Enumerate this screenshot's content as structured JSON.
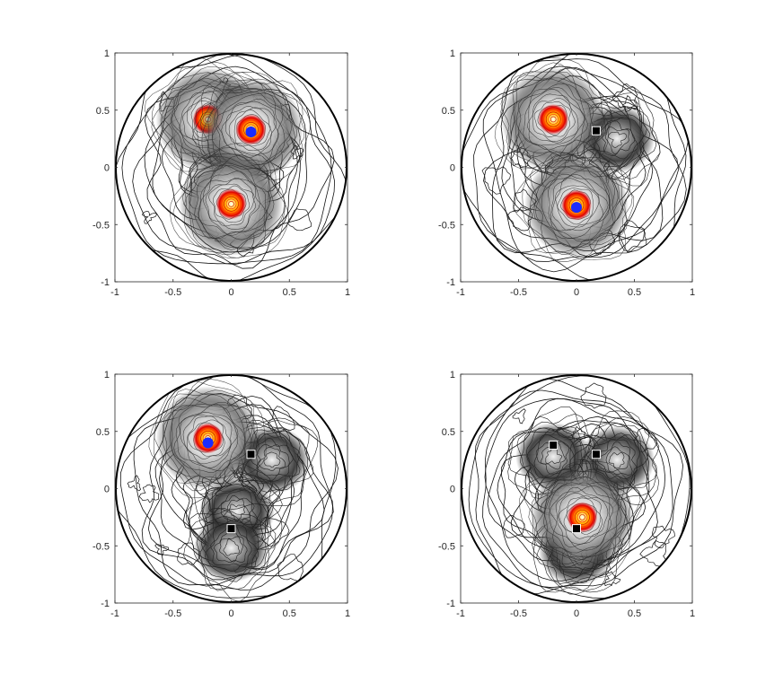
{
  "figure": {
    "background": "#ffffff",
    "axes_color": "#262626",
    "contour_color": "#111111",
    "square_marker_color": "#000000",
    "circle_marker_color": "#1a2bff",
    "hot_colors": [
      "#ffffff",
      "#ffe680",
      "#ffb000",
      "#ff5a00",
      "#e00000"
    ]
  },
  "chart_data": [
    {
      "type": "contour",
      "title": "",
      "xlabel": "",
      "ylabel": "",
      "xlim": [
        -1,
        1
      ],
      "ylim": [
        -1,
        1
      ],
      "xticks": [
        -1,
        -0.5,
        0,
        0.5,
        1
      ],
      "yticks": [
        -1,
        -0.5,
        0,
        0.5,
        1
      ],
      "grid": false,
      "boundary": "unit circle",
      "bright_spots": [
        [
          -0.2,
          0.42
        ],
        [
          0.17,
          0.33
        ],
        [
          0,
          -0.32
        ]
      ],
      "circle_markers": [
        [
          0.17,
          0.31
        ]
      ],
      "square_markers": []
    },
    {
      "type": "contour",
      "title": "",
      "xlabel": "",
      "ylabel": "",
      "xlim": [
        -1,
        1
      ],
      "ylim": [
        -1,
        1
      ],
      "xticks": [
        -1,
        -0.5,
        0,
        0.5,
        1
      ],
      "yticks": [
        -1,
        -0.5,
        0,
        0.5,
        1
      ],
      "grid": false,
      "boundary": "unit circle",
      "bright_spots": [
        [
          -0.2,
          0.42
        ],
        [
          0,
          -0.33
        ]
      ],
      "dark_lobes": [
        [
          0.35,
          0.25
        ]
      ],
      "circle_markers": [
        [
          0,
          -0.35
        ]
      ],
      "square_markers": [
        [
          0.17,
          0.32
        ]
      ]
    },
    {
      "type": "contour",
      "title": "",
      "xlabel": "",
      "ylabel": "",
      "xlim": [
        -1,
        1
      ],
      "ylim": [
        -1,
        1
      ],
      "xticks": [
        -1,
        -0.5,
        0,
        0.5,
        1
      ],
      "yticks": [
        -1,
        -0.5,
        0,
        0.5,
        1
      ],
      "grid": false,
      "boundary": "unit circle",
      "bright_spots": [
        [
          -0.2,
          0.44
        ]
      ],
      "dark_lobes": [
        [
          0.35,
          0.25
        ],
        [
          0.05,
          -0.2
        ],
        [
          0,
          -0.52
        ]
      ],
      "circle_markers": [
        [
          -0.2,
          0.4
        ]
      ],
      "square_markers": [
        [
          0.17,
          0.3
        ],
        [
          0,
          -0.35
        ]
      ]
    },
    {
      "type": "contour",
      "title": "",
      "xlabel": "",
      "ylabel": "",
      "xlim": [
        -1,
        1
      ],
      "ylim": [
        -1,
        1
      ],
      "xticks": [
        -1,
        -0.5,
        0,
        0.5,
        1
      ],
      "yticks": [
        -1,
        -0.5,
        0,
        0.5,
        1
      ],
      "grid": false,
      "boundary": "unit circle",
      "bright_spots": [
        [
          0.05,
          -0.25
        ]
      ],
      "dark_lobes": [
        [
          -0.2,
          0.28
        ],
        [
          0.35,
          0.25
        ],
        [
          0,
          -0.55
        ]
      ],
      "circle_markers": [],
      "square_markers": [
        [
          -0.2,
          0.38
        ],
        [
          0.17,
          0.3
        ],
        [
          0,
          -0.35
        ]
      ]
    }
  ]
}
